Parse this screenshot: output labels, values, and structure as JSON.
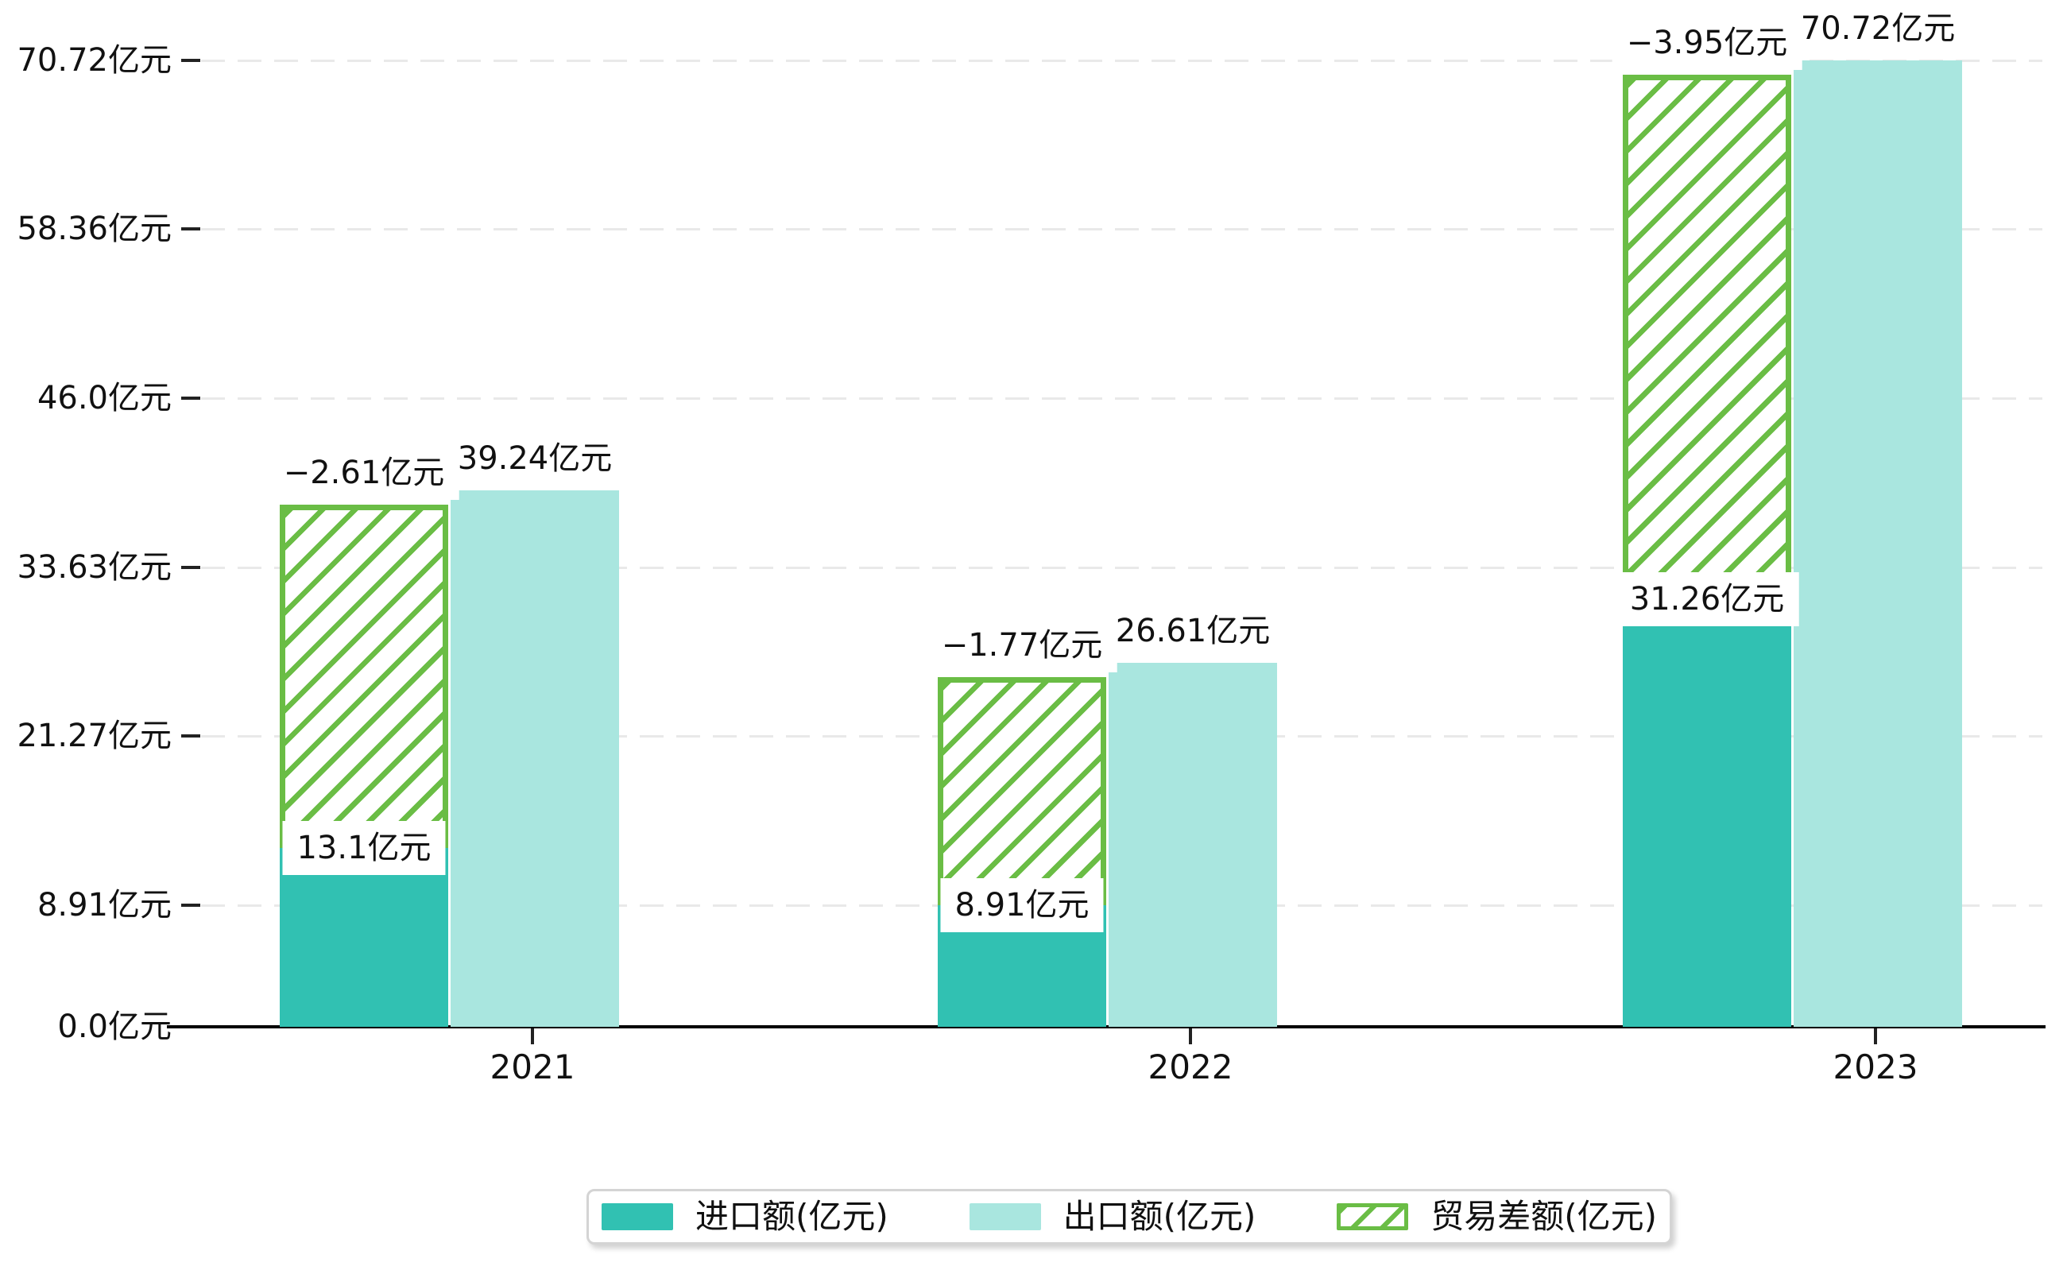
{
  "chart_data": {
    "type": "bar",
    "title": "",
    "categories": [
      "2021",
      "2022",
      "2023"
    ],
    "series": [
      {
        "name": "进口额(亿元)",
        "role": "import",
        "values": [
          13.1,
          8.91,
          31.26
        ],
        "value_labels": [
          "13.1亿元",
          "8.91亿元",
          "31.26亿元"
        ],
        "color": "#31c1b2",
        "style": "solid"
      },
      {
        "name": "出口额(亿元)",
        "role": "export",
        "values": [
          39.24,
          26.61,
          70.72
        ],
        "value_labels": [
          "39.24亿元",
          "26.61亿元",
          "70.72亿元"
        ],
        "color": "#a9e6df",
        "style": "solid"
      },
      {
        "name": "贸易差额(亿元)",
        "role": "trade-balance",
        "values": [
          -2.61,
          -1.77,
          -3.95
        ],
        "value_labels": [
          "−2.61亿元",
          "−1.77亿元",
          "−3.95亿元"
        ],
        "color": "#6abd45",
        "style": "hatched",
        "note": "drawn as hatched band spanning from import bar top to export bar top"
      }
    ],
    "yticks": {
      "values": [
        0,
        8.91,
        21.27,
        33.63,
        46.0,
        58.36,
        70.72
      ],
      "labels": [
        "0.0亿元",
        "8.91亿元",
        "21.27亿元",
        "33.63亿元",
        "46.0亿元",
        "58.36亿元",
        "70.72亿元"
      ]
    },
    "ylim": [
      0,
      74
    ],
    "xlabel": "",
    "ylabel": "",
    "grid": "horizontal-dashed",
    "legend": {
      "position": "bottom-center",
      "items": [
        {
          "label": "进口额(亿元)",
          "swatch": "import"
        },
        {
          "label": "出口额(亿元)",
          "swatch": "export"
        },
        {
          "label": "贸易差额(亿元)",
          "swatch": "hatched"
        }
      ]
    },
    "colors": {
      "import": "#31c1b2",
      "export": "#a9e6df",
      "balance_green": "#6abd45",
      "grid": "#e9e9e9",
      "axis": "#000000",
      "text": "#111111",
      "legend_border": "#d4d4d4",
      "background": "#ffffff"
    }
  }
}
